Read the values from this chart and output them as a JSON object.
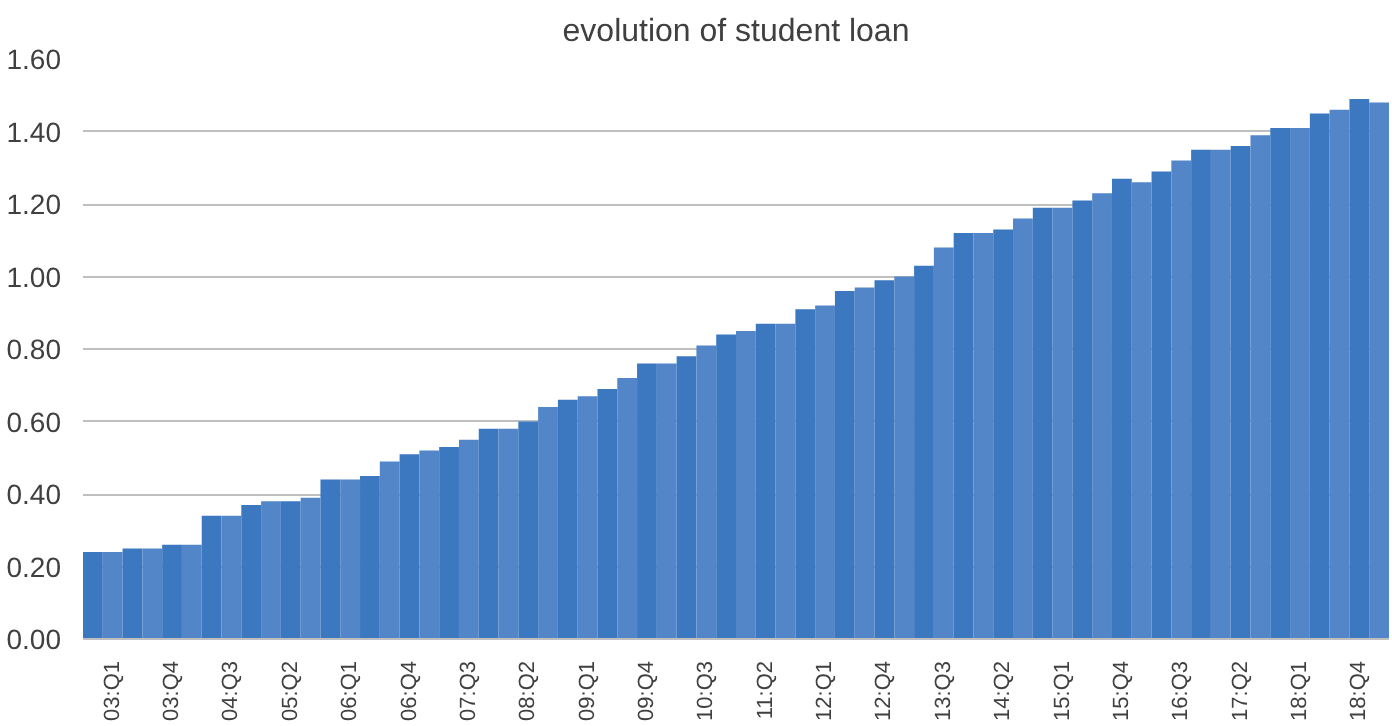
{
  "chart_data": {
    "type": "bar",
    "title": "evolution of student loan",
    "categories": [
      null,
      "03:Q1",
      null,
      null,
      "03:Q4",
      null,
      null,
      "04:Q3",
      null,
      null,
      "05:Q2",
      null,
      null,
      "06:Q1",
      null,
      null,
      "06:Q4",
      null,
      null,
      "07:Q3",
      null,
      null,
      "08:Q2",
      null,
      null,
      "09:Q1",
      null,
      null,
      "09:Q4",
      null,
      null,
      "10:Q3",
      null,
      null,
      "11:Q2",
      null,
      null,
      "12:Q1",
      null,
      null,
      "12:Q4",
      null,
      null,
      "13:Q3",
      null,
      null,
      "14:Q2",
      null,
      null,
      "15:Q1",
      null,
      null,
      "15:Q4",
      null,
      null,
      "16:Q3",
      null,
      null,
      "17:Q2",
      null,
      null,
      "18:Q1",
      null,
      null,
      "18:Q4",
      null
    ],
    "values": [
      0.24,
      0.24,
      0.25,
      0.25,
      0.26,
      0.26,
      0.34,
      0.34,
      0.37,
      0.38,
      0.38,
      0.39,
      0.44,
      0.44,
      0.45,
      0.49,
      0.51,
      0.52,
      0.53,
      0.55,
      0.58,
      0.58,
      0.6,
      0.64,
      0.66,
      0.67,
      0.69,
      0.72,
      0.76,
      0.76,
      0.78,
      0.81,
      0.84,
      0.85,
      0.87,
      0.87,
      0.91,
      0.92,
      0.96,
      0.97,
      0.99,
      1.0,
      1.03,
      1.08,
      1.12,
      1.12,
      1.13,
      1.16,
      1.19,
      1.19,
      1.21,
      1.23,
      1.27,
      1.26,
      1.29,
      1.32,
      1.35,
      1.35,
      1.36,
      1.39,
      1.41,
      1.41,
      1.45,
      1.46,
      1.49,
      1.48
    ],
    "colors": [
      "#3b78c0",
      "#5286c8",
      "#3b78c0",
      "#5286c8",
      "#3b78c0",
      "#5286c8",
      "#3b78c0",
      "#5286c8",
      "#3b78c0",
      "#5286c8",
      "#3b78c0",
      "#5286c8",
      "#3b78c0",
      "#5286c8",
      "#3b78c0",
      "#5286c8",
      "#3b78c0",
      "#5286c8",
      "#3b78c0",
      "#5286c8",
      "#3b78c0",
      "#5286c8",
      "#3b78c0",
      "#5286c8",
      "#3b78c0",
      "#5286c8",
      "#3b78c0",
      "#5286c8",
      "#3b78c0",
      "#5286c8",
      "#3b78c0",
      "#5286c8",
      "#3b78c0",
      "#5286c8",
      "#3b78c0",
      "#5286c8",
      "#3b78c0",
      "#5286c8",
      "#3b78c0",
      "#5286c8",
      "#3b78c0",
      "#5286c8",
      "#3b78c0",
      "#5286c8",
      "#3b78c0",
      "#5286c8",
      "#3b78c0",
      "#5286c8",
      "#3b78c0",
      "#5286c8",
      "#3b78c0",
      "#5286c8",
      "#3b78c0",
      "#5286c8",
      "#3b78c0",
      "#5286c8",
      "#3b78c0",
      "#5286c8",
      "#3b78c0",
      "#5286c8",
      "#3b78c0",
      "#5286c8",
      "#3b78c0",
      "#5286c8",
      "#3b78c0",
      "#5286c8"
    ],
    "ylim": [
      0,
      1.6
    ],
    "yticks": [
      {
        "value": 0,
        "label": "0.00"
      },
      {
        "value": 0.2,
        "label": "0.20"
      },
      {
        "value": 0.4,
        "label": "0.40"
      },
      {
        "value": 0.6,
        "label": "0.60"
      },
      {
        "value": 0.8,
        "label": "0.80"
      },
      {
        "value": 1.0,
        "label": "1.00"
      },
      {
        "value": 1.2,
        "label": "1.20"
      },
      {
        "value": 1.4,
        "label": "1.40"
      },
      {
        "value": 1.6,
        "label": "1.60"
      }
    ],
    "grid": "y"
  }
}
